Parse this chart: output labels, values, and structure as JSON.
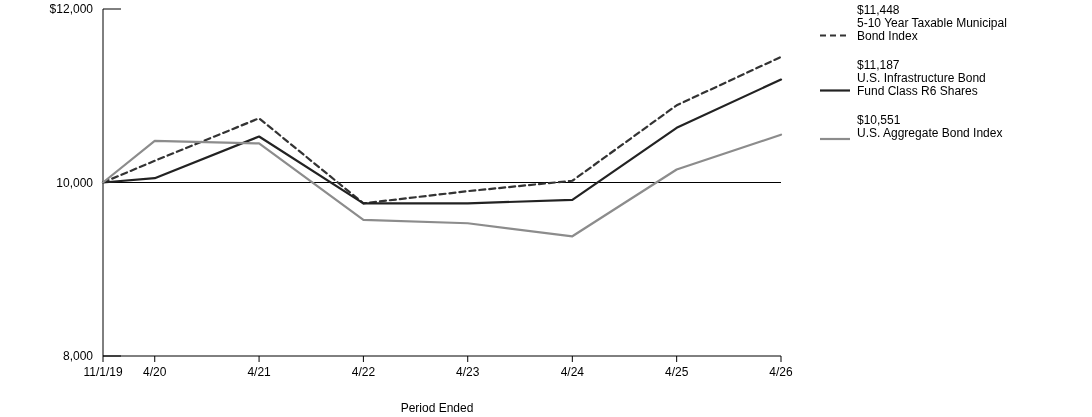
{
  "chart_data": {
    "type": "line",
    "xlabel": "Period Ended",
    "x": [
      "2019-11-01",
      "2020-04-30",
      "2021-04-30",
      "2022-04-30",
      "2023-04-30",
      "2024-04-30",
      "2025-04-30",
      "2026-04-30"
    ],
    "series": [
      {
        "name": "5-10 Year Taxable Municipal Bond Index",
        "color": "#333333",
        "line_style": "dashed",
        "values": [
          10000,
          10250,
          10740,
          9760,
          9900,
          10020,
          10890,
          11448
        ]
      },
      {
        "name": "U.S. Infrastructure Bond Fund Class R6 Shares",
        "color": "#222222",
        "line_style": "solid",
        "values": [
          10000,
          10050,
          10530,
          9760,
          9760,
          9800,
          10630,
          11187
        ]
      },
      {
        "name": "U.S. Aggregate Bond Index",
        "color": "#8c8c8c",
        "line_style": "solid",
        "values": [
          10000,
          10480,
          10450,
          9570,
          9530,
          9380,
          10150,
          10551
        ]
      }
    ],
    "annotations": [
      "$11,448",
      "$11,187",
      "$10,551"
    ],
    "xlim": [
      "2019-11-01",
      "2026-04-30"
    ],
    "xticks": [
      {
        "value": "2019-11-01",
        "label": "11/1/19"
      },
      {
        "value": "2020-04-30",
        "label": "4/20"
      },
      {
        "value": "2021-04-30",
        "label": "4/21"
      },
      {
        "value": "2022-04-30",
        "label": "4/22"
      },
      {
        "value": "2023-04-30",
        "label": "4/23"
      },
      {
        "value": "2024-04-30",
        "label": "4/24"
      },
      {
        "value": "2025-04-30",
        "label": "4/25"
      },
      {
        "value": "2026-04-30",
        "label": "4/26"
      }
    ],
    "ylim": [
      8000,
      12000
    ],
    "yticks": [
      {
        "value": 8000,
        "label": "8,000"
      },
      {
        "value": 10000,
        "label": "10,000"
      },
      {
        "value": 12000,
        "label": "$12,000"
      }
    ],
    "ref_lines": [
      {
        "axis": "y",
        "value": 10000,
        "color": "#000000"
      }
    ],
    "grid": false,
    "legend": "right",
    "marker": "none"
  }
}
